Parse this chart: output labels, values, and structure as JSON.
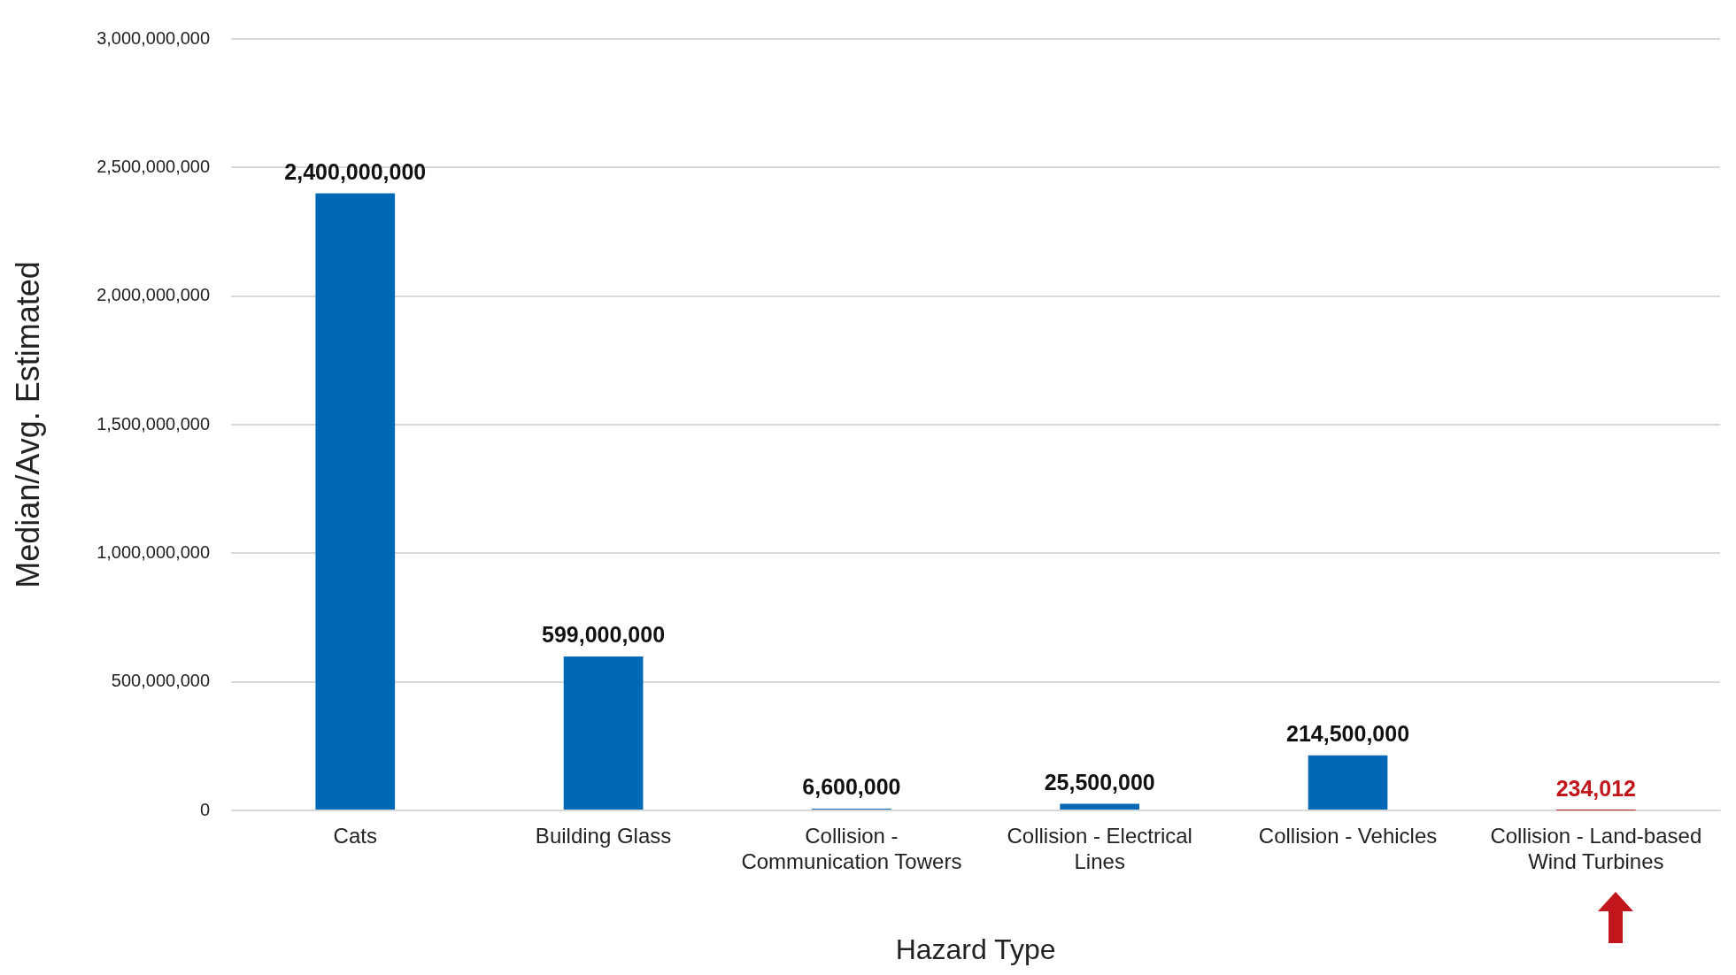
{
  "chart_data": {
    "type": "bar",
    "xlabel": "Hazard Type",
    "ylabel": "Median/Avg. Estimated",
    "categories": [
      "Cats",
      "Building Glass",
      "Collision - Communication Towers",
      "Collision - Electrical Lines",
      "Collision - Vehicles",
      "Collision - Land-based Wind Turbines"
    ],
    "values": [
      2400000000,
      599000000,
      6600000,
      25500000,
      214500000,
      234012
    ],
    "colors": [
      "#0068b5",
      "#0068b5",
      "#0068b5",
      "#0068b5",
      "#0068b5",
      "#c0161c"
    ],
    "value_labels": [
      "2,400,000,000",
      "599,000,000",
      "6,600,000",
      "25,500,000",
      "214,500,000",
      "234,012"
    ],
    "ylim": [
      0,
      3000000000
    ],
    "yticks": [
      0,
      {
        "value": 500000000,
        "label": "500,000,000"
      },
      {
        "value": 1000000000,
        "label": "1,000,000,000"
      },
      {
        "value": 1500000000,
        "label": "1,500,000,000"
      },
      {
        "value": 2000000000,
        "label": "2,000,000,000"
      },
      {
        "value": 2500000000,
        "label": "2,500,000,000"
      },
      {
        "value": 3000000000,
        "label": "3,000,000,000"
      }
    ],
    "grid": "y",
    "legend": false
  }
}
